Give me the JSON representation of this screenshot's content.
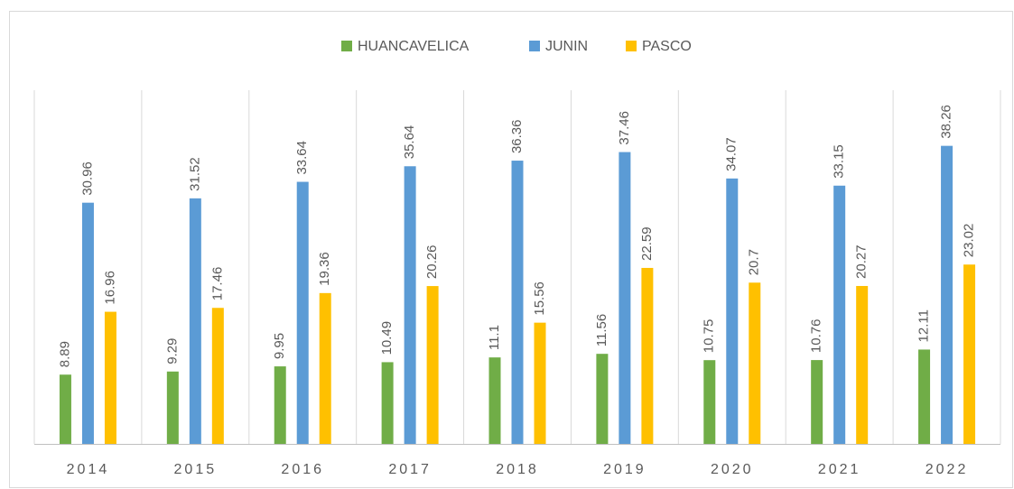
{
  "chart_data": {
    "type": "bar",
    "categories": [
      "2014",
      "2015",
      "2016",
      "2017",
      "2018",
      "2019",
      "2020",
      "2021",
      "2022"
    ],
    "series": [
      {
        "name": "HUANCAVELICA",
        "color": "#70ad47",
        "values": [
          8.89,
          9.29,
          9.95,
          10.49,
          11.1,
          11.56,
          10.75,
          10.76,
          12.11
        ]
      },
      {
        "name": "JUNIN",
        "color": "#5b9bd5",
        "values": [
          30.96,
          31.52,
          33.64,
          35.64,
          36.36,
          37.46,
          34.07,
          33.15,
          38.26
        ]
      },
      {
        "name": "PASCO",
        "color": "#ffc000",
        "values": [
          16.96,
          17.46,
          19.36,
          20.26,
          15.56,
          22.59,
          20.7,
          20.27,
          23.02
        ]
      }
    ],
    "ylim": [
      0,
      45.4
    ],
    "legend": "top"
  }
}
